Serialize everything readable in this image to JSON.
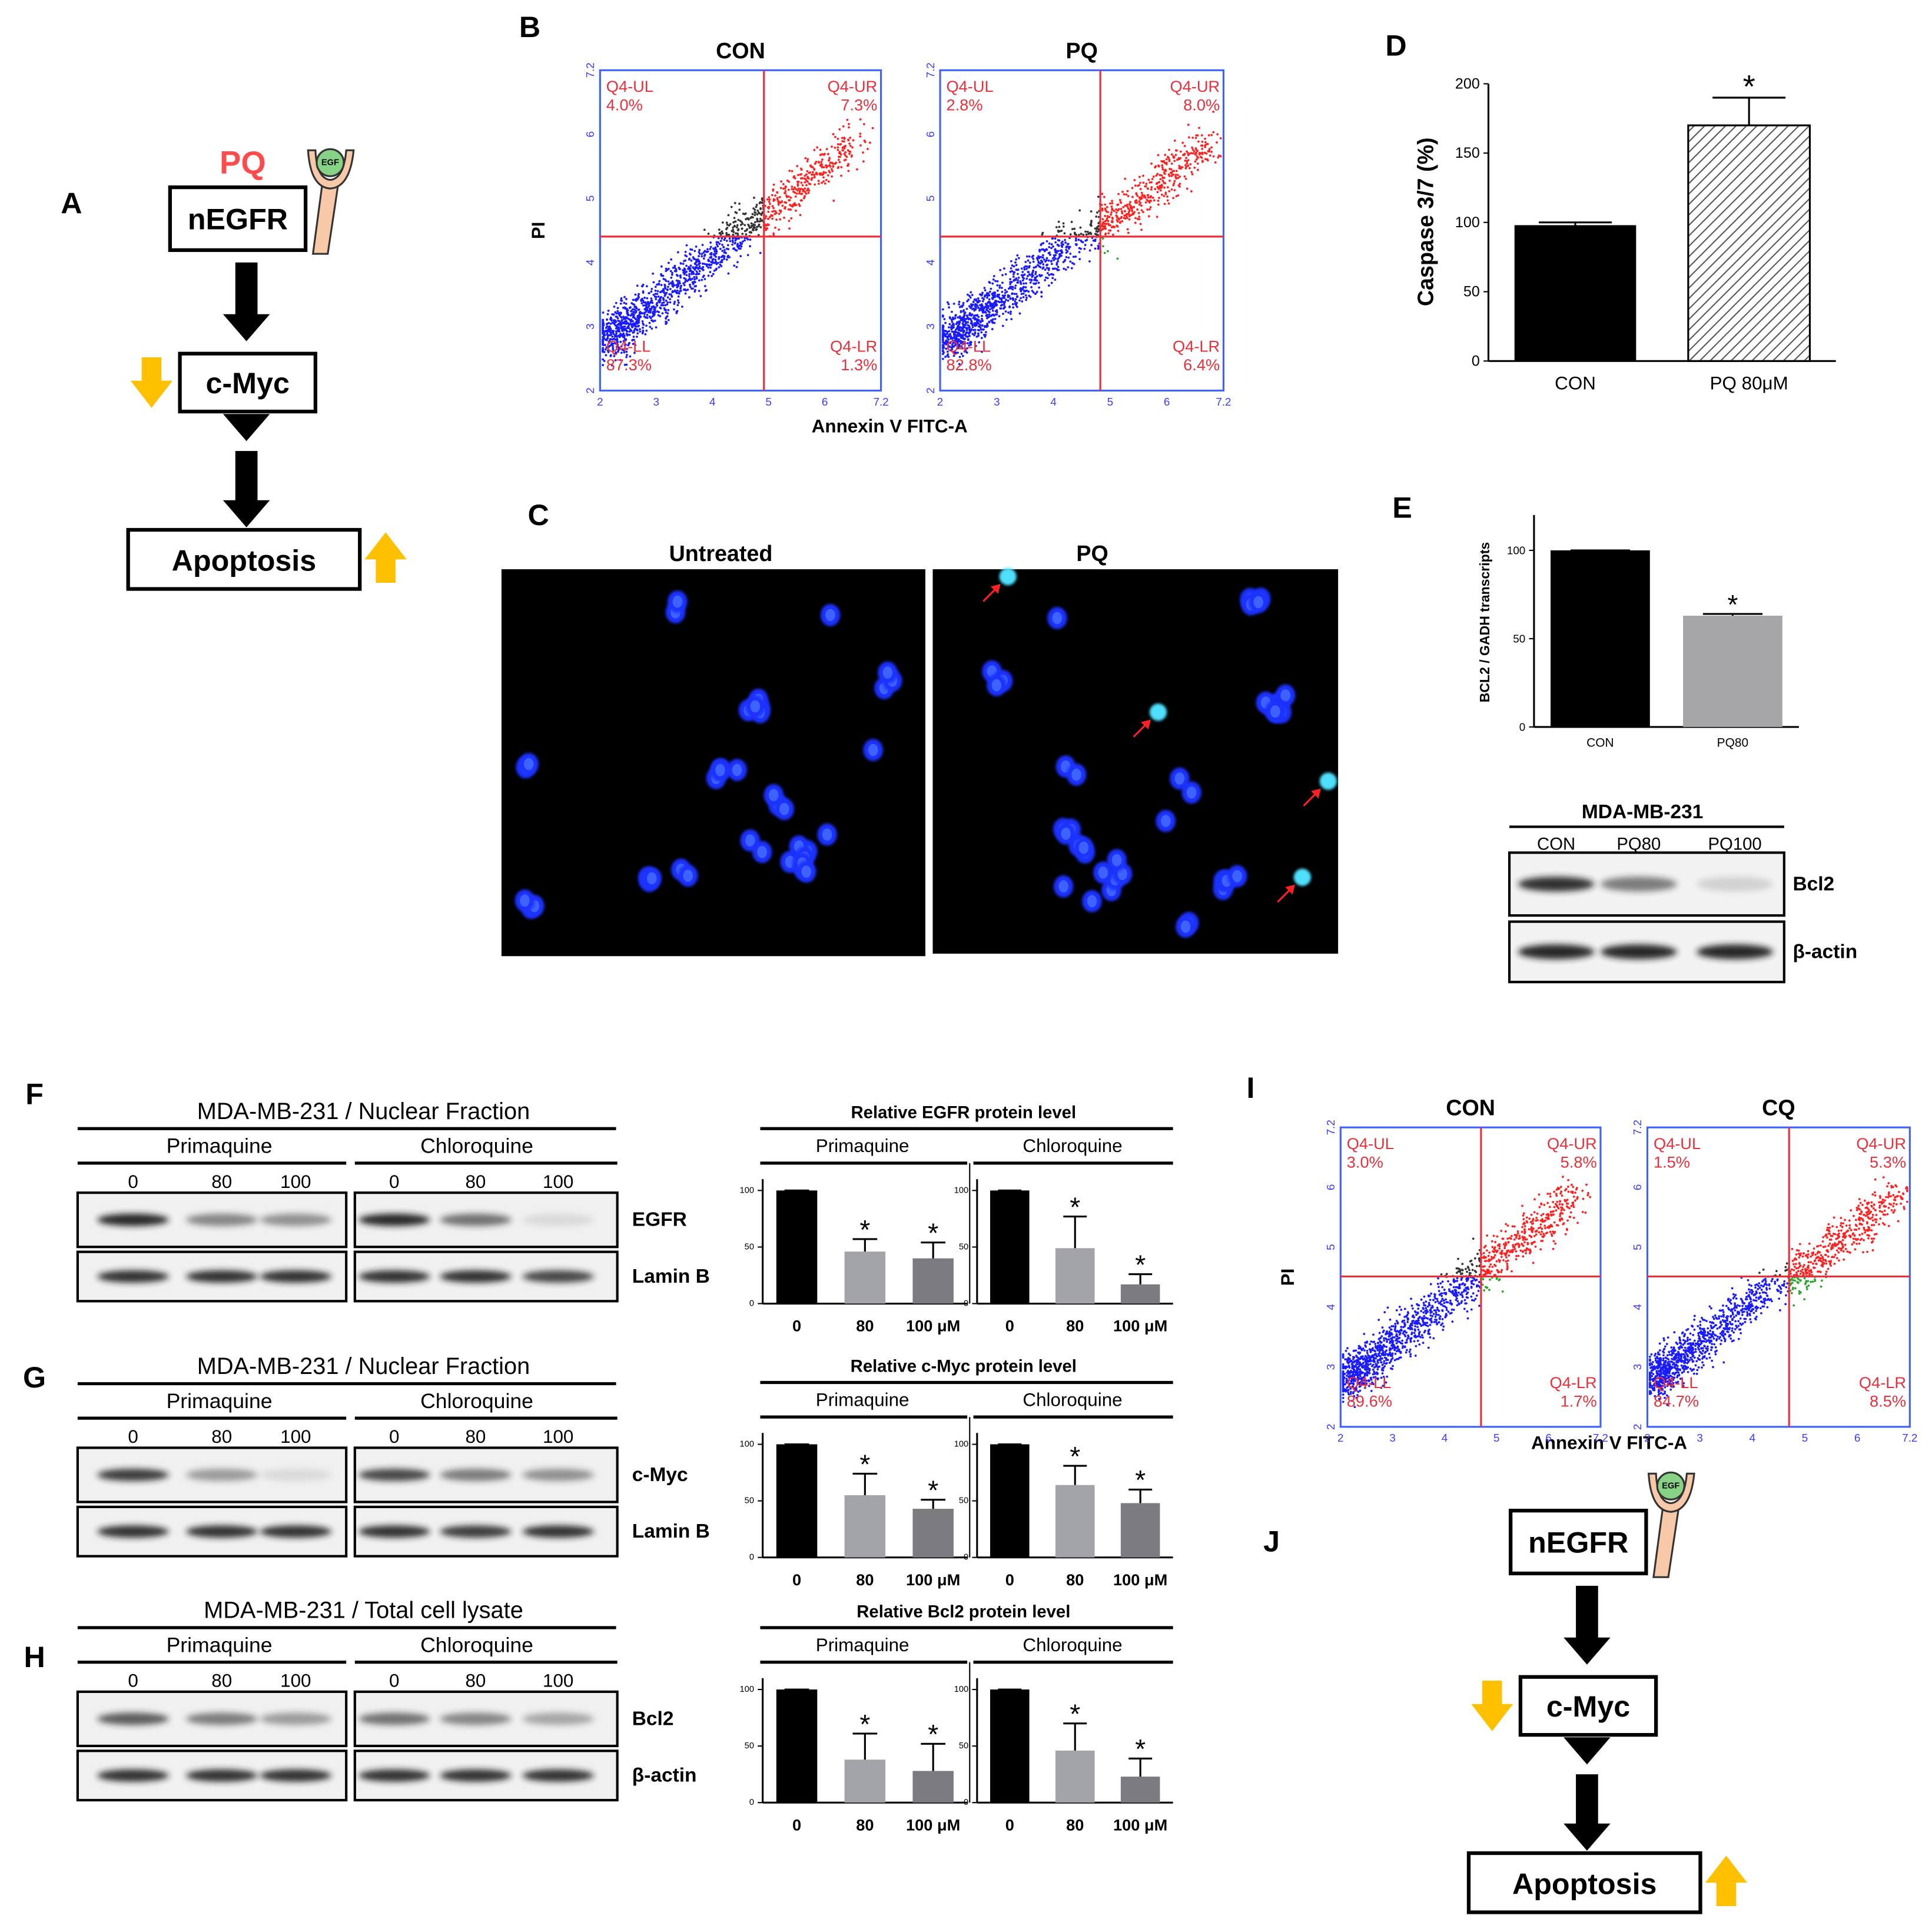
{
  "panel_labels": [
    "A",
    "B",
    "C",
    "D",
    "E",
    "F",
    "G",
    "H",
    "I",
    "J"
  ],
  "pathways": [
    {
      "drug": "PQ",
      "receptor": "nEGFR",
      "ligand": "EGF",
      "target": "c-Myc",
      "outcome": "Apoptosis"
    },
    {
      "receptor": "nEGFR",
      "ligand": "EGF",
      "target": "c-Myc",
      "outcome": "Apoptosis"
    }
  ],
  "flow": [
    {
      "xlabel": "Annexin V FITC-A",
      "ylabel": "PI",
      "ticks": [
        "2",
        "3",
        "4",
        "5",
        "6",
        "7.2"
      ],
      "plots": [
        {
          "title": "CON",
          "quadrants": [
            [
              "Q4-UL",
              "4.0%"
            ],
            [
              "Q4-UR",
              "7.3%"
            ],
            [
              "Q4-LL",
              "87.3%"
            ],
            [
              "Q4-LR",
              "1.3%"
            ]
          ]
        },
        {
          "title": "PQ",
          "quadrants": [
            [
              "Q4-UL",
              "2.8%"
            ],
            [
              "Q4-UR",
              "8.0%"
            ],
            [
              "Q4-LL",
              "82.8%"
            ],
            [
              "Q4-LR",
              "6.4%"
            ]
          ]
        }
      ]
    },
    {
      "xlabel": "Annexin V FITC-A",
      "ylabel": "PI",
      "ticks": [
        "2",
        "3",
        "4",
        "5",
        "6",
        "7.2"
      ],
      "plots": [
        {
          "title": "CON",
          "quadrants": [
            [
              "Q4-UL",
              "3.0%"
            ],
            [
              "Q4-UR",
              "5.8%"
            ],
            [
              "Q4-LL",
              "89.6%"
            ],
            [
              "Q4-LR",
              "1.7%"
            ]
          ]
        },
        {
          "title": "CQ",
          "quadrants": [
            [
              "Q4-UL",
              "1.5%"
            ],
            [
              "Q4-UR",
              "5.3%"
            ],
            [
              "Q4-LL",
              "84.7%"
            ],
            [
              "Q4-LR",
              "8.5%"
            ]
          ]
        }
      ]
    }
  ],
  "microscopy": {
    "labels": [
      "Untreated",
      "PQ"
    ]
  },
  "western": {
    "cell_line": "MDA-MB-231",
    "lanes": [
      "CON",
      "PQ80",
      "PQ100"
    ],
    "rows": [
      "Bcl2",
      "β-actin"
    ]
  },
  "blots": [
    {
      "title": "MDA-MB-231 / Nuclear Fraction",
      "groups": [
        "Primaquine",
        "Chloroquine"
      ],
      "doses": [
        "0",
        "80",
        "100"
      ],
      "rows": [
        "EGFR",
        "Lamin B"
      ],
      "quant_title": "Relative EGFR  protein level"
    },
    {
      "title": "MDA-MB-231 / Nuclear Fraction",
      "groups": [
        "Primaquine",
        "Chloroquine"
      ],
      "doses": [
        "0",
        "80",
        "100"
      ],
      "rows": [
        "c-Myc",
        "Lamin B"
      ],
      "quant_title": "Relative c-Myc protein level"
    },
    {
      "title": "MDA-MB-231 / Total cell lysate",
      "groups": [
        "Primaquine",
        "Chloroquine"
      ],
      "doses": [
        "0",
        "80",
        "100"
      ],
      "rows": [
        "Bcl2",
        "β-actin"
      ],
      "quant_title": "Relative Bcl2 protein level"
    }
  ],
  "chart_data": [
    {
      "type": "bar",
      "ylabel": "Caspase 3/7 (%)",
      "categories": [
        "CON",
        "PQ 80μM"
      ],
      "values": [
        98,
        170
      ],
      "errors": [
        2,
        20
      ],
      "significance": [
        null,
        "*"
      ],
      "colors": [
        "#000000",
        "#ffffff"
      ],
      "hatch": [
        false,
        true
      ],
      "ylim": [
        0,
        200
      ],
      "yticks": [
        0,
        50,
        100,
        150,
        200
      ]
    },
    {
      "type": "bar",
      "ylabel": "BCL2 / GADH transcripts",
      "categories": [
        "CON",
        "PQ80"
      ],
      "values": [
        100,
        63
      ],
      "errors": [
        0,
        1
      ],
      "significance": [
        null,
        "*"
      ],
      "colors": [
        "#000000",
        "#a6a6a8"
      ],
      "ylim": [
        0,
        120
      ],
      "yticks": [
        0,
        50,
        100
      ]
    },
    {
      "type": "bar",
      "title": "Primaquine",
      "categories": [
        "0",
        "80",
        "100 μM"
      ],
      "values": [
        100,
        46,
        40
      ],
      "errors": [
        0,
        11,
        14
      ],
      "significance": [
        null,
        "*",
        "*"
      ],
      "colors": [
        "#000000",
        "#a3a3aa",
        "#7c7c80"
      ],
      "ylim": [
        0,
        110
      ],
      "yticks": [
        0,
        50,
        100
      ]
    },
    {
      "type": "bar",
      "title": "Chloroquine",
      "categories": [
        "0",
        "80",
        "100 μM"
      ],
      "values": [
        100,
        49,
        17
      ],
      "errors": [
        0,
        28,
        9
      ],
      "significance": [
        null,
        "*",
        "*"
      ],
      "colors": [
        "#000000",
        "#a3a3aa",
        "#7c7c80"
      ],
      "ylim": [
        0,
        110
      ],
      "yticks": [
        0,
        50,
        100
      ]
    },
    {
      "type": "bar",
      "title": "Primaquine",
      "categories": [
        "0",
        "80",
        "100 μM"
      ],
      "values": [
        100,
        55,
        43
      ],
      "errors": [
        0,
        19,
        8
      ],
      "significance": [
        null,
        "*",
        "*"
      ],
      "colors": [
        "#000000",
        "#a3a3aa",
        "#7c7c80"
      ],
      "ylim": [
        0,
        110
      ],
      "yticks": [
        0,
        50,
        100
      ]
    },
    {
      "type": "bar",
      "title": "Chloroquine",
      "categories": [
        "0",
        "80",
        "100 μM"
      ],
      "values": [
        100,
        64,
        48
      ],
      "errors": [
        0,
        17,
        12
      ],
      "significance": [
        null,
        "*",
        "*"
      ],
      "colors": [
        "#000000",
        "#a3a3aa",
        "#7c7c80"
      ],
      "ylim": [
        0,
        110
      ],
      "yticks": [
        0,
        50,
        100
      ]
    },
    {
      "type": "bar",
      "title": "Primaquine",
      "categories": [
        "0",
        "80",
        "100 μM"
      ],
      "values": [
        100,
        38,
        28
      ],
      "errors": [
        0,
        23,
        24
      ],
      "significance": [
        null,
        "*",
        "*"
      ],
      "colors": [
        "#000000",
        "#a3a3aa",
        "#7c7c80"
      ],
      "ylim": [
        0,
        110
      ],
      "yticks": [
        0,
        50,
        100
      ]
    },
    {
      "type": "bar",
      "title": "Chloroquine",
      "categories": [
        "0",
        "80",
        "100 μM"
      ],
      "values": [
        100,
        46,
        23
      ],
      "errors": [
        0,
        24,
        16
      ],
      "significance": [
        null,
        "*",
        "*"
      ],
      "colors": [
        "#000000",
        "#a3a3aa",
        "#7c7c80"
      ],
      "ylim": [
        0,
        110
      ],
      "yticks": [
        0,
        50,
        100
      ]
    }
  ]
}
